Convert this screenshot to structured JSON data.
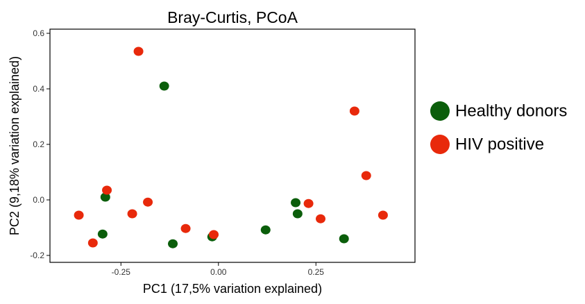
{
  "chart_data": {
    "type": "scatter",
    "title": "Bray-Curtis, PCoA",
    "x_label": "PC1 (17,5% variation explained)",
    "y_label": "PC2 (9,18% variation explained)",
    "xlim": [
      -0.432,
      0.504
    ],
    "ylim": [
      -0.225,
      0.615
    ],
    "xticks": [
      -0.25,
      {
        "value": 0,
        "label": "0.00"
      },
      0.25
    ],
    "yticks": [
      -0.2,
      {
        "value": 0,
        "label": "0.0"
      },
      0.2,
      0.4,
      0.6
    ],
    "legend": "right",
    "series": [
      {
        "name": "Healthy donors",
        "color": "#0b5e0b",
        "x": [
          -0.139,
          -0.29,
          -0.297,
          -0.117,
          -0.016,
          0.121,
          0.198,
          0.203,
          0.322
        ],
        "y": [
          0.41,
          0.01,
          -0.123,
          -0.158,
          -0.133,
          -0.108,
          -0.01,
          -0.05,
          -0.14
        ]
      },
      {
        "name": "HIV positive",
        "color": "#e8290b",
        "x": [
          -0.205,
          -0.286,
          -0.358,
          -0.322,
          -0.221,
          -0.181,
          -0.084,
          -0.012,
          0.231,
          0.262,
          0.349,
          0.379,
          0.422
        ],
        "y": [
          0.535,
          0.035,
          -0.055,
          -0.155,
          -0.05,
          -0.008,
          -0.103,
          -0.125,
          -0.013,
          -0.068,
          0.32,
          0.0875,
          -0.055
        ]
      }
    ]
  }
}
